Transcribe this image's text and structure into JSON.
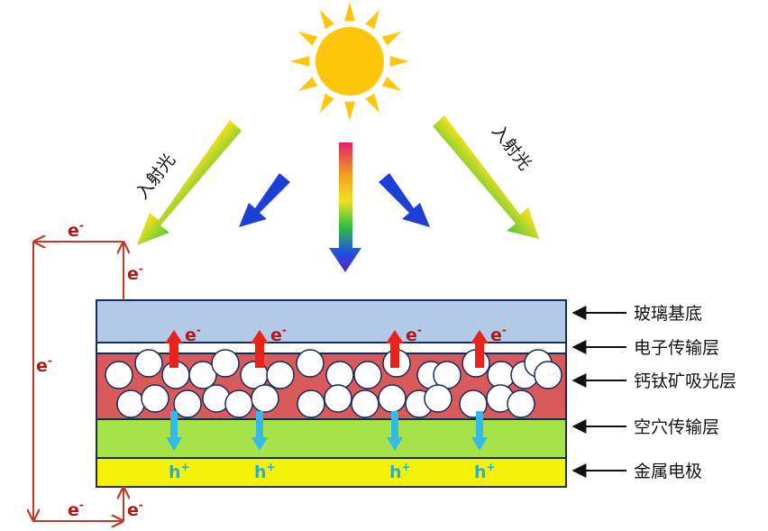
{
  "incident_light_label": "入射光",
  "electron_label": "e",
  "electron_sup": "-",
  "hole_label": "h",
  "hole_sup": "+",
  "layers": [
    {
      "label": "玻璃基底",
      "color": "#b3c9e8"
    },
    {
      "label": "电子传输层",
      "color": "#ffffff"
    },
    {
      "label": "钙钛矿吸光层",
      "color": "#d95a5a"
    },
    {
      "label": "空穴传输层",
      "color": "#a6e34a"
    },
    {
      "label": "金属电极",
      "color": "#f5f20a"
    }
  ],
  "colors": {
    "sun": "#fdc60a",
    "circuit": "#c0392b",
    "electron_arrow": "#e8231c",
    "hole_arrow": "#35b9e6",
    "blue_arrow": "#1e3fd6",
    "outline": "#1a2a5a"
  }
}
